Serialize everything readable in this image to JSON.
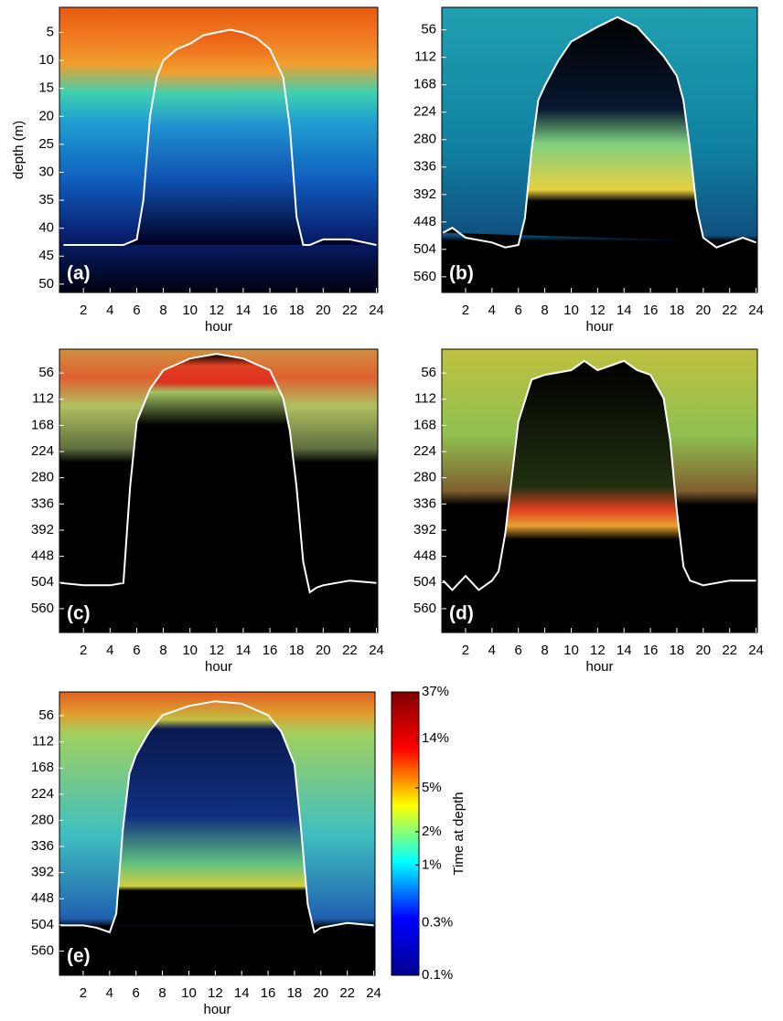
{
  "chart_data": [
    {
      "type": "line",
      "annotation": "(a)",
      "ylabel": "depth (m)",
      "xlabel": "hour",
      "xlim": [
        0.2,
        24.1
      ],
      "xticks": [
        2,
        4,
        6,
        8,
        10,
        12,
        14,
        16,
        18,
        20,
        22,
        24
      ],
      "ylim": [
        0.5,
        51.5
      ],
      "yticks": [
        5,
        10,
        15,
        20,
        25,
        30,
        35,
        40,
        45,
        50
      ],
      "y_reversed": true,
      "series": [
        {
          "color": "#ffffff",
          "x": [
            0.5,
            2,
            4,
            5,
            6,
            6.5,
            7,
            7.5,
            8,
            9,
            10,
            11,
            12,
            13,
            14,
            15,
            16,
            17,
            17.5,
            18,
            18.5,
            19,
            20,
            22,
            24
          ],
          "values": [
            43,
            43,
            43,
            43,
            42,
            35,
            20,
            13,
            10,
            8,
            7,
            5.5,
            5,
            4.5,
            5,
            6,
            8,
            13,
            22,
            38,
            43,
            43,
            42,
            42,
            43
          ]
        }
      ]
    },
    {
      "type": "line",
      "annotation": "(b)",
      "xlabel": "hour",
      "xlim": [
        0.2,
        24.1
      ],
      "xticks": [
        2,
        4,
        6,
        8,
        10,
        12,
        14,
        16,
        18,
        20,
        22,
        24
      ],
      "ylim": [
        10,
        592
      ],
      "yticks": [
        56,
        112,
        168,
        224,
        280,
        336,
        392,
        448,
        504,
        560
      ],
      "y_reversed": true,
      "series": [
        {
          "color": "#ffffff",
          "x": [
            0.3,
            1,
            2,
            4,
            5,
            6,
            6.5,
            7,
            7.5,
            8,
            9,
            10,
            12,
            13.5,
            15,
            16,
            17,
            18,
            18.5,
            19,
            19.5,
            20,
            21,
            22,
            23,
            24
          ],
          "values": [
            470,
            460,
            480,
            490,
            500,
            495,
            440,
            300,
            200,
            170,
            120,
            80,
            50,
            30,
            50,
            80,
            110,
            150,
            200,
            300,
            420,
            480,
            500,
            490,
            480,
            490
          ]
        }
      ]
    },
    {
      "type": "line",
      "annotation": "(c)",
      "xlabel": "hour",
      "xlim": [
        0.2,
        24.1
      ],
      "xticks": [
        2,
        4,
        6,
        8,
        10,
        12,
        14,
        16,
        18,
        20,
        22,
        24
      ],
      "ylim": [
        5,
        611
      ],
      "yticks": [
        56,
        112,
        168,
        224,
        280,
        336,
        392,
        448,
        504,
        560
      ],
      "y_reversed": true,
      "series": [
        {
          "color": "#ffffff",
          "x": [
            0.3,
            2,
            4,
            5,
            5.5,
            6,
            7,
            8,
            10,
            12,
            14,
            16,
            17,
            17.5,
            18,
            18.5,
            19,
            19.5,
            20,
            22,
            24
          ],
          "values": [
            505,
            510,
            510,
            505,
            300,
            160,
            90,
            50,
            25,
            15,
            25,
            50,
            110,
            180,
            300,
            460,
            525,
            515,
            510,
            500,
            505
          ]
        }
      ]
    },
    {
      "type": "line",
      "annotation": "(d)",
      "xlabel": "hour",
      "xlim": [
        0.2,
        24.1
      ],
      "xticks": [
        2,
        4,
        6,
        8,
        10,
        12,
        14,
        16,
        18,
        20,
        22,
        24
      ],
      "ylim": [
        5,
        611
      ],
      "yticks": [
        56,
        112,
        168,
        224,
        280,
        336,
        392,
        448,
        504,
        560
      ],
      "y_reversed": true,
      "series": [
        {
          "color": "#ffffff",
          "x": [
            0.3,
            1,
            2,
            3,
            4,
            4.5,
            5,
            5.5,
            6,
            7,
            8,
            10,
            11,
            12,
            13,
            14,
            15,
            16,
            17,
            17.5,
            18,
            18.5,
            19,
            20,
            22,
            24
          ],
          "values": [
            500,
            520,
            490,
            520,
            500,
            480,
            400,
            280,
            160,
            70,
            60,
            50,
            30,
            50,
            40,
            30,
            50,
            60,
            110,
            200,
            350,
            470,
            500,
            510,
            500,
            500
          ]
        }
      ]
    },
    {
      "type": "line",
      "annotation": "(e)",
      "xlabel": "hour",
      "xlim": [
        0.2,
        24.1
      ],
      "xticks": [
        2,
        4,
        6,
        8,
        10,
        12,
        14,
        16,
        18,
        20,
        22,
        24
      ],
      "ylim": [
        5,
        612
      ],
      "yticks": [
        56,
        112,
        168,
        224,
        280,
        336,
        392,
        448,
        504,
        560
      ],
      "y_reversed": true,
      "series": [
        {
          "color": "#ffffff",
          "x": [
            0.3,
            2,
            3,
            4,
            4.5,
            5,
            5.5,
            6,
            7,
            8,
            10,
            12,
            14,
            16,
            17,
            18,
            18.5,
            19,
            19.5,
            20,
            22,
            24
          ],
          "values": [
            505,
            505,
            510,
            520,
            480,
            300,
            180,
            140,
            90,
            55,
            35,
            25,
            30,
            55,
            90,
            160,
            300,
            460,
            520,
            510,
            500,
            505
          ]
        }
      ],
      "colorbar": {
        "label": "Time at depth",
        "scale": "log",
        "lim": [
          0.1,
          37
        ],
        "colors": [
          "#00008f",
          "#0000ff",
          "#00ffff",
          "#ffff00",
          "#ff0000",
          "#800000"
        ],
        "ticks": [
          {
            "value": 37,
            "label": "37%"
          },
          {
            "value": 14,
            "label": "14%"
          },
          {
            "value": 5,
            "label": "5%"
          },
          {
            "value": 2,
            "label": "2%"
          },
          {
            "value": 1,
            "label": "1%"
          },
          {
            "value": 0.3,
            "label": "0.3%"
          },
          {
            "value": 0.1,
            "label": "0.1%"
          }
        ]
      }
    }
  ]
}
